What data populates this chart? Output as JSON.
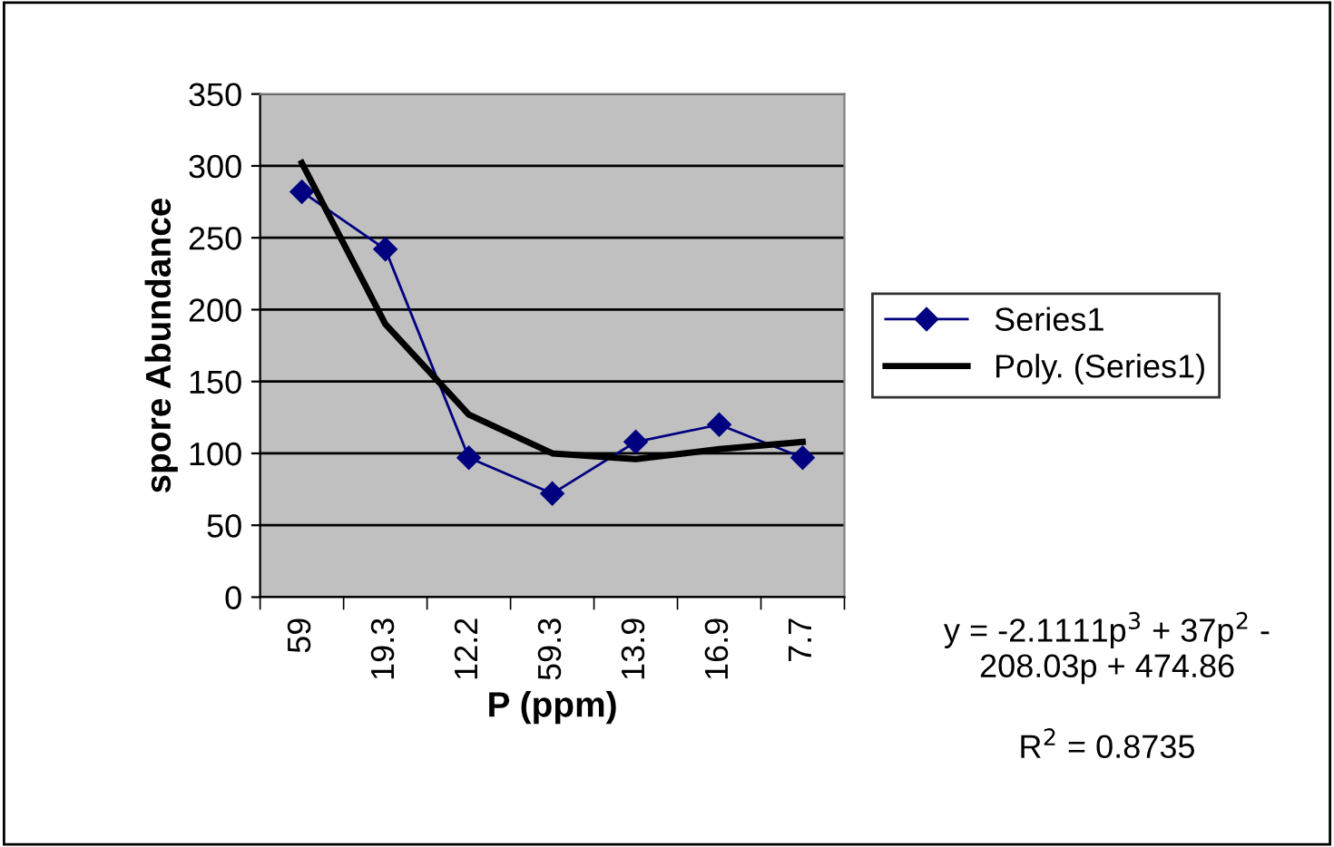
{
  "chart_data": {
    "type": "line",
    "xlabel": "P (ppm)",
    "ylabel": "spore Abundance",
    "categories": [
      "59",
      "19.3",
      "12.2",
      "59.3",
      "13.9",
      "16.9",
      "7.7"
    ],
    "series": [
      {
        "name": "Series1",
        "color": "#000080",
        "values": [
          282,
          242,
          97,
          72,
          108,
          120,
          97
        ],
        "marker": "diamond"
      },
      {
        "name": "Poly. (Series1)",
        "type": "line",
        "color": "#000000",
        "values": [
          302,
          190,
          127,
          100,
          96,
          103,
          108
        ],
        "marker": "none"
      }
    ],
    "ylim": [
      0,
      350
    ],
    "yticks": [
      0,
      50,
      100,
      150,
      200,
      250,
      300,
      350
    ],
    "grid": "y",
    "legend": "right",
    "annotations": [
      "y = -2.1111p$^{3}$ + 37p$^{2}$ - 208.03p + 474.86",
      "R$^{2}$ = 0.8735"
    ]
  }
}
